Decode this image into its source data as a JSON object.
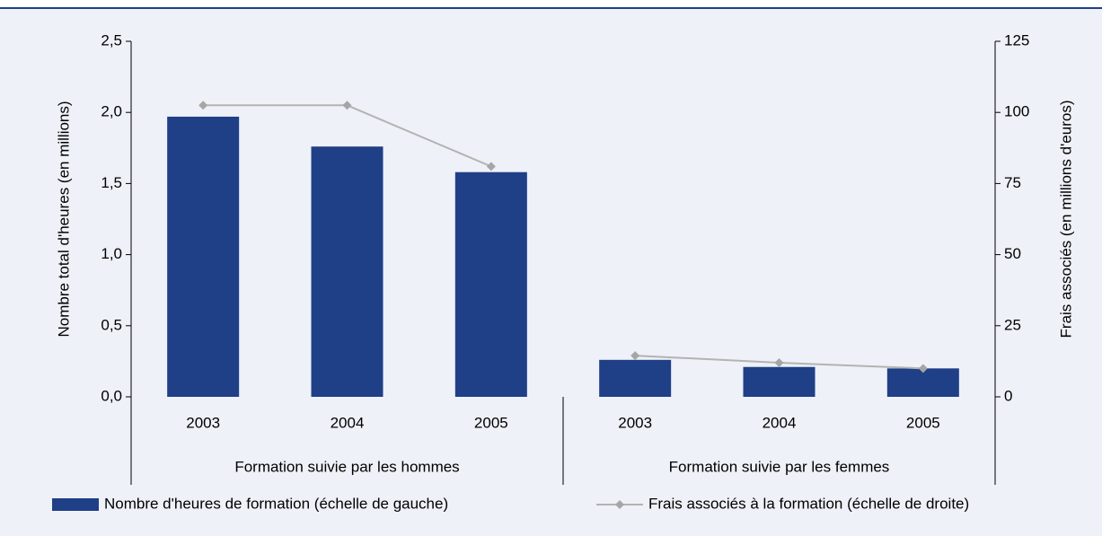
{
  "chart_data": {
    "type": "bar_line",
    "y_label": "Nombre total d'heures (en millions)",
    "y2_label": "Frais associés (en millions d'euros)",
    "category_groups": [
      {
        "name": "Formation suivie par les hommes",
        "categories": [
          "2003",
          "2004",
          "2005"
        ]
      },
      {
        "name": "Formation suivie par les femmes",
        "categories": [
          "2003",
          "2004",
          "2005"
        ]
      }
    ],
    "series": [
      {
        "name": "Nombre d'heures de formation (échelle de gauche)",
        "type": "bar",
        "color": "#1f3f87",
        "values": [
          1.97,
          1.76,
          1.58,
          0.26,
          0.21,
          0.2
        ]
      },
      {
        "name": "Frais associés à la formation (échelle de droite)",
        "type": "line",
        "axis": "y2",
        "color": "#b3b3b3",
        "marker_color": "#a6a6a6",
        "values": [
          102.5,
          102.5,
          81,
          14.5,
          12,
          10
        ]
      }
    ],
    "ylim": [
      0,
      2.5
    ],
    "yticks": [
      {
        "value": 0,
        "label": "0,0"
      },
      {
        "value": 0.5,
        "label": "0,5"
      },
      {
        "value": 1,
        "label": "1,0"
      },
      {
        "value": 1.5,
        "label": "1,5"
      },
      {
        "value": 2,
        "label": "2,0"
      },
      {
        "value": 2.5,
        "label": "2,5"
      }
    ],
    "y2lim": [
      0,
      125
    ],
    "y2ticks": [
      0,
      25,
      50,
      75,
      100,
      125
    ],
    "legend": "bottom"
  }
}
